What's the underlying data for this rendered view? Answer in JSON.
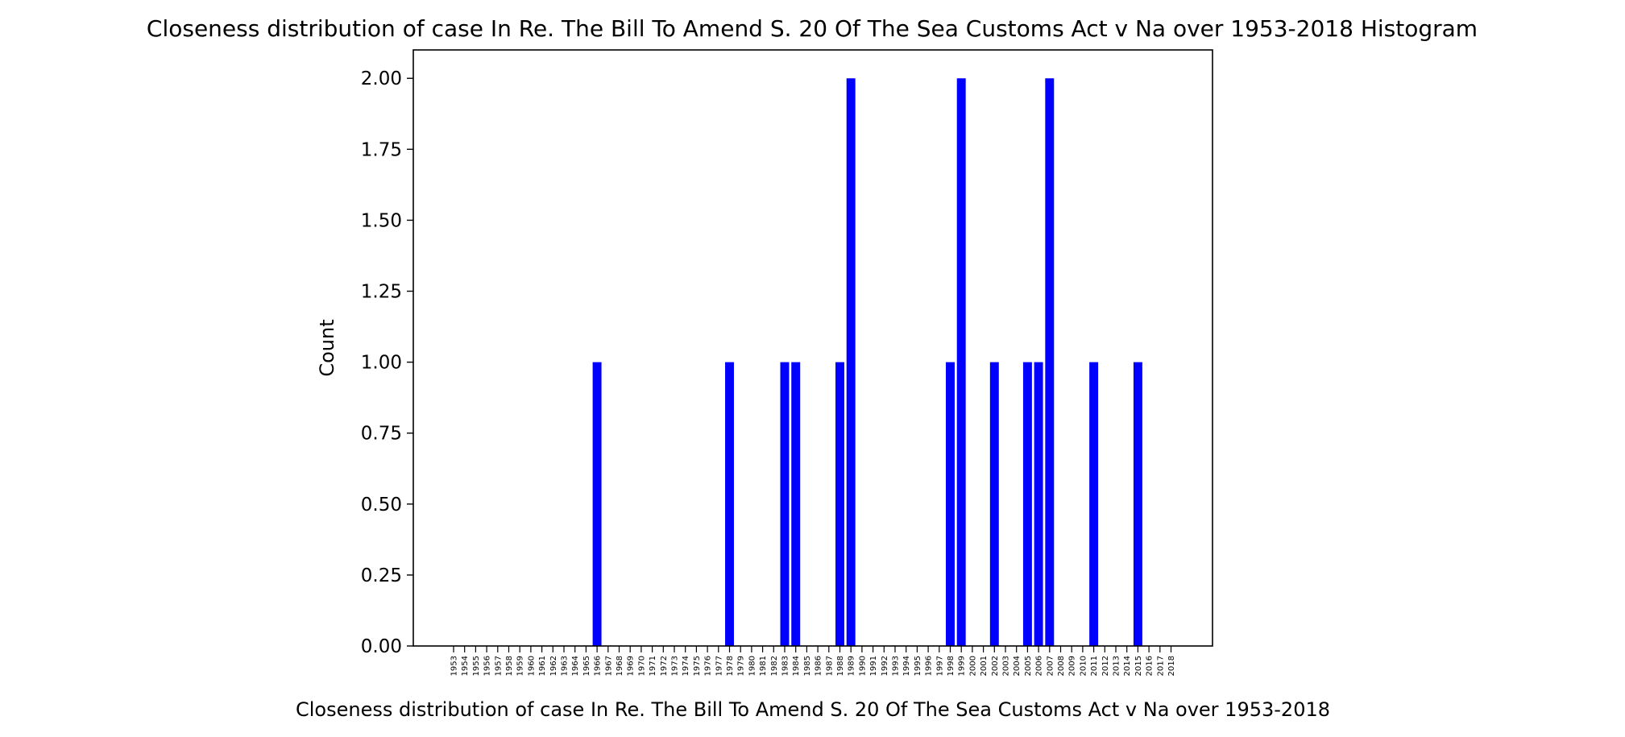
{
  "chart_data": {
    "type": "bar",
    "title": "Closeness distribution of case In Re. The Bill To Amend S. 20 Of The Sea Customs Act v Na over 1953-2018 Histogram",
    "xlabel": "Closeness distribution of case In Re. The Bill To Amend S. 20 Of The Sea Customs Act v Na over 1953-2018",
    "ylabel": "Count",
    "ylim": [
      0,
      2.1
    ],
    "yticks": [
      "0.00",
      "0.25",
      "0.50",
      "0.75",
      "1.00",
      "1.25",
      "1.50",
      "1.75",
      "2.00"
    ],
    "ytick_values": [
      0,
      0.25,
      0.5,
      0.75,
      1.0,
      1.25,
      1.5,
      1.75,
      2.0
    ],
    "bar_color": "#0000ff",
    "categories": [
      "1953",
      "1954",
      "1955",
      "1956",
      "1957",
      "1958",
      "1959",
      "1960",
      "1961",
      "1962",
      "1963",
      "1964",
      "1965",
      "1966",
      "1967",
      "1968",
      "1969",
      "1970",
      "1971",
      "1972",
      "1973",
      "1974",
      "1975",
      "1976",
      "1977",
      "1978",
      "1979",
      "1980",
      "1981",
      "1982",
      "1983",
      "1984",
      "1985",
      "1986",
      "1987",
      "1988",
      "1989",
      "1990",
      "1991",
      "1992",
      "1993",
      "1994",
      "1995",
      "1996",
      "1997",
      "1998",
      "1999",
      "2000",
      "2001",
      "2002",
      "2003",
      "2004",
      "2005",
      "2006",
      "2007",
      "2008",
      "2009",
      "2010",
      "2011",
      "2012",
      "2013",
      "2014",
      "2015",
      "2016",
      "2017",
      "2018"
    ],
    "values": [
      0,
      0,
      0,
      0,
      0,
      0,
      0,
      0,
      0,
      0,
      0,
      0,
      0,
      1,
      0,
      0,
      0,
      0,
      0,
      0,
      0,
      0,
      0,
      0,
      0,
      1,
      0,
      0,
      0,
      0,
      1,
      1,
      0,
      0,
      0,
      1,
      2,
      0,
      0,
      0,
      0,
      0,
      0,
      0,
      0,
      1,
      2,
      0,
      0,
      1,
      0,
      0,
      1,
      1,
      2,
      0,
      0,
      0,
      1,
      0,
      0,
      0,
      1,
      0,
      0,
      0
    ]
  }
}
